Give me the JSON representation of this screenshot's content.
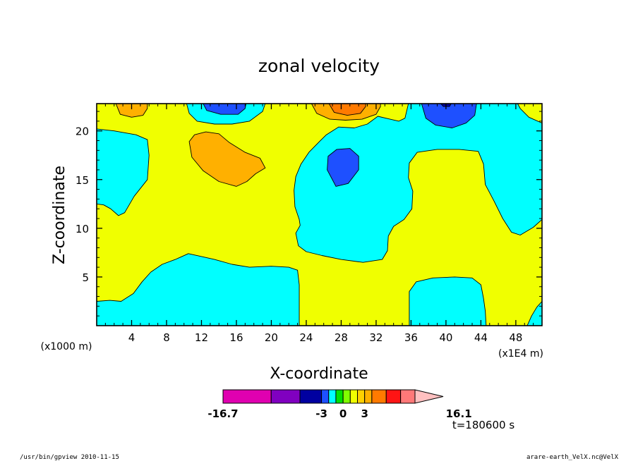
{
  "chart_data": {
    "type": "heatmap",
    "title": "zonal velocity",
    "xlabel": "X-coordinate",
    "ylabel": "Z-coordinate",
    "x_unit_label": "(x1E4 m)",
    "y_unit_label": "(x1000 m)",
    "xlim": [
      0,
      51
    ],
    "ylim": [
      0,
      22.8
    ],
    "x_ticks": [
      4,
      8,
      12,
      16,
      20,
      24,
      28,
      32,
      36,
      40,
      44,
      48
    ],
    "y_ticks": [
      5,
      10,
      15,
      20
    ],
    "time_label": "t=180600 s",
    "colorbar": {
      "levels": [
        -16.7,
        -10,
        -6,
        -3,
        -2,
        -1,
        0,
        1,
        2,
        3,
        4,
        6,
        8,
        10,
        16.1
      ],
      "colors": [
        "#e000b0",
        "#8000c0",
        "#0000a0",
        "#1e50ff",
        "#00ffff",
        "#00e000",
        "#80ff00",
        "#f0ff00",
        "#ffd000",
        "#ffb000",
        "#ff7a00",
        "#ff1414",
        "#ff7878",
        "#ffc0c0"
      ],
      "tick_labels": [
        "-16.7",
        "-3",
        "0",
        "3",
        "16.1"
      ],
      "tick_values": [
        -16.7,
        -3,
        0,
        3,
        16.1
      ]
    },
    "regions": [
      {
        "value": 1.5,
        "pts": [
          [
            0,
            22.8
          ],
          [
            51,
            22.8
          ],
          [
            51,
            0
          ],
          [
            0,
            0
          ]
        ]
      },
      {
        "value": -1.5,
        "pts": [
          [
            0,
            20.2
          ],
          [
            2,
            20
          ],
          [
            4.5,
            19.6
          ],
          [
            5.8,
            19.1
          ],
          [
            6,
            17.5
          ],
          [
            5.8,
            15
          ],
          [
            4.3,
            13.3
          ],
          [
            3.2,
            11.6
          ],
          [
            2.5,
            11.3
          ],
          [
            1.6,
            12
          ],
          [
            0.8,
            12.4
          ],
          [
            0,
            12.5
          ]
        ]
      },
      {
        "value": -1.5,
        "pts": [
          [
            10.3,
            22.8
          ],
          [
            10.6,
            21.8
          ],
          [
            11.5,
            21
          ],
          [
            13.5,
            20.7
          ],
          [
            15.5,
            20.7
          ],
          [
            17.5,
            21
          ],
          [
            19,
            22
          ],
          [
            19.3,
            22.8
          ]
        ]
      },
      {
        "value": -1.5,
        "pts": [
          [
            0,
            0
          ],
          [
            0,
            2.5
          ],
          [
            1.5,
            2.6
          ],
          [
            2.8,
            2.5
          ],
          [
            4.2,
            3.3
          ],
          [
            5.2,
            4.5
          ],
          [
            6.2,
            5.5
          ],
          [
            7.5,
            6.3
          ],
          [
            9,
            6.8
          ],
          [
            10.5,
            7.4
          ],
          [
            12,
            7.1
          ],
          [
            13.5,
            6.8
          ],
          [
            15.5,
            6.3
          ],
          [
            17.5,
            6
          ],
          [
            20,
            6.1
          ],
          [
            22,
            6
          ],
          [
            23,
            5.7
          ],
          [
            23.2,
            4.2
          ],
          [
            23.2,
            0
          ]
        ]
      },
      {
        "value": -1.5,
        "pts": [
          [
            23.3,
            10.3
          ],
          [
            22.8,
            9.5
          ],
          [
            23.1,
            8.2
          ],
          [
            24,
            7.6
          ],
          [
            25.8,
            7.2
          ],
          [
            28,
            6.8
          ],
          [
            30.5,
            6.5
          ],
          [
            32.7,
            6.8
          ],
          [
            33.3,
            7.7
          ],
          [
            33.4,
            9.2
          ],
          [
            34,
            10.2
          ],
          [
            35.2,
            10.9
          ],
          [
            36.1,
            12
          ],
          [
            36.2,
            13.8
          ],
          [
            35.7,
            15.2
          ],
          [
            35.8,
            16.7
          ],
          [
            36.7,
            17.8
          ],
          [
            39,
            18.1
          ],
          [
            41.5,
            18.1
          ],
          [
            43.7,
            17.9
          ],
          [
            44.3,
            16.6
          ],
          [
            44.5,
            14.5
          ],
          [
            45.5,
            12.8
          ],
          [
            46.5,
            11
          ],
          [
            47.5,
            9.6
          ],
          [
            48.5,
            9.3
          ],
          [
            50,
            10.1
          ],
          [
            51,
            10.9
          ],
          [
            51,
            20.8
          ],
          [
            49.5,
            21.4
          ],
          [
            48.5,
            22.3
          ],
          [
            48.2,
            22.8
          ],
          [
            35.7,
            22.8
          ],
          [
            35.3,
            21.3
          ],
          [
            34.6,
            21
          ],
          [
            33.6,
            21.2
          ],
          [
            32.2,
            21.5
          ],
          [
            31,
            20.7
          ],
          [
            29.5,
            20.3
          ],
          [
            27.7,
            20.4
          ],
          [
            26.3,
            19.6
          ],
          [
            25.5,
            18.9
          ],
          [
            24.3,
            17.8
          ],
          [
            23.4,
            16.6
          ],
          [
            22.8,
            15.3
          ],
          [
            22.6,
            13.9
          ],
          [
            22.7,
            12.2
          ],
          [
            23.2,
            10.9
          ]
        ]
      },
      {
        "value": -1.5,
        "pts": [
          [
            35.8,
            0
          ],
          [
            35.8,
            3.5
          ],
          [
            36.6,
            4.5
          ],
          [
            38.5,
            4.9
          ],
          [
            41,
            5
          ],
          [
            43,
            4.9
          ],
          [
            44,
            4.2
          ],
          [
            44.3,
            2.8
          ],
          [
            44.5,
            1.5
          ],
          [
            44.6,
            0
          ]
        ]
      },
      {
        "value": -1.5,
        "pts": [
          [
            49.3,
            0
          ],
          [
            49.8,
            1
          ],
          [
            50.4,
            1.9
          ],
          [
            51,
            2.5
          ],
          [
            51,
            0
          ]
        ]
      },
      {
        "value": 3.5,
        "pts": [
          [
            10.6,
            18.9
          ],
          [
            11.2,
            19.6
          ],
          [
            12.5,
            19.9
          ],
          [
            14,
            19.7
          ],
          [
            15.2,
            18.8
          ],
          [
            17,
            17.8
          ],
          [
            18.7,
            17.2
          ],
          [
            19.3,
            16.2
          ],
          [
            18.2,
            15.6
          ],
          [
            17.2,
            14.8
          ],
          [
            16,
            14.3
          ],
          [
            14,
            14.8
          ],
          [
            12.2,
            15.9
          ],
          [
            10.9,
            17.3
          ]
        ]
      },
      {
        "value": 3.5,
        "pts": [
          [
            2.2,
            22.8
          ],
          [
            2.7,
            21.7
          ],
          [
            4,
            21.4
          ],
          [
            5.3,
            21.6
          ],
          [
            5.8,
            22.3
          ],
          [
            5.8,
            22.8
          ]
        ]
      },
      {
        "value": 3.5,
        "pts": [
          [
            24.6,
            22.8
          ],
          [
            25.2,
            21.8
          ],
          [
            26.7,
            21.2
          ],
          [
            28.5,
            21.1
          ],
          [
            30.4,
            21.2
          ],
          [
            32,
            21.7
          ],
          [
            32.5,
            22.5
          ],
          [
            32.5,
            22.8
          ]
        ]
      },
      {
        "value": 5,
        "pts": [
          [
            26.6,
            22.8
          ],
          [
            27.2,
            21.9
          ],
          [
            28.7,
            21.6
          ],
          [
            30.2,
            21.8
          ],
          [
            30.8,
            22.5
          ],
          [
            30.8,
            22.8
          ]
        ]
      },
      {
        "value": -2.5,
        "pts": [
          [
            12.2,
            22.8
          ],
          [
            12.6,
            22.1
          ],
          [
            14.2,
            21.7
          ],
          [
            16.2,
            21.7
          ],
          [
            17,
            22.3
          ],
          [
            17.1,
            22.8
          ]
        ]
      },
      {
        "value": -2.5,
        "pts": [
          [
            26.4,
            16
          ],
          [
            26.5,
            17.4
          ],
          [
            27.5,
            18.1
          ],
          [
            29,
            18.2
          ],
          [
            30,
            17.4
          ],
          [
            30,
            16
          ],
          [
            28.8,
            14.6
          ],
          [
            27.4,
            14.3
          ]
        ]
      },
      {
        "value": -2.5,
        "pts": [
          [
            37.2,
            22.8
          ],
          [
            37.7,
            21.3
          ],
          [
            38.8,
            20.6
          ],
          [
            40.7,
            20.3
          ],
          [
            42.3,
            20.8
          ],
          [
            43.3,
            21.6
          ],
          [
            43.5,
            22.8
          ]
        ]
      },
      {
        "value": -4.5,
        "pts": [
          [
            39.4,
            22.8
          ],
          [
            39.7,
            22.5
          ],
          [
            40.4,
            22.5
          ],
          [
            40.6,
            22.8
          ]
        ]
      }
    ]
  },
  "footer": {
    "left": "/usr/bin/gpview   2010-11-15",
    "right": "arare-earth_VelX.nc@VelX"
  }
}
